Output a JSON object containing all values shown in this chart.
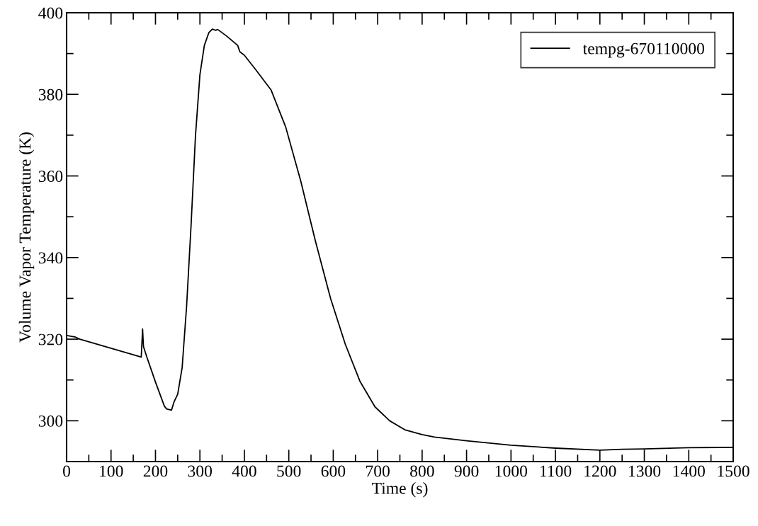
{
  "chart_data": {
    "type": "line",
    "xlabel": "Time (s)",
    "ylabel": "Volume Vapor Temperature (K)",
    "xlim": [
      0,
      1500
    ],
    "xticks": [
      0,
      100,
      200,
      300,
      400,
      500,
      600,
      700,
      800,
      900,
      1000,
      1100,
      1200,
      1300,
      1400,
      1500
    ],
    "ylim": [
      290,
      400
    ],
    "yticks": [
      300,
      320,
      340,
      360,
      380,
      400
    ],
    "grid": false,
    "legend": "top right",
    "line_style": "solid",
    "marker": "none",
    "x": [
      0,
      20,
      30,
      168,
      171,
      173,
      180,
      200,
      220,
      225,
      236,
      242,
      250,
      260,
      270,
      280,
      290,
      300,
      310,
      320,
      328,
      335,
      340,
      360,
      385,
      390,
      400,
      426,
      460,
      493,
      527,
      560,
      594,
      627,
      660,
      694,
      727,
      761,
      800,
      828,
      900,
      1000,
      1100,
      1200,
      1250,
      1300,
      1400,
      1500
    ],
    "series": [
      {
        "name": "tempg-670110000",
        "color": "#000000",
        "values": [
          320.9,
          320.5,
          320.0,
          315.6,
          322.5,
          318.2,
          315.8,
          309.5,
          303.6,
          302.9,
          302.6,
          304.7,
          306.5,
          313.0,
          328.0,
          347.7,
          369.8,
          384.8,
          392.0,
          395.1,
          396.0,
          395.7,
          395.9,
          394.3,
          392.0,
          390.4,
          389.6,
          386.0,
          381.1,
          372.0,
          358.7,
          344.0,
          330.0,
          318.8,
          309.7,
          303.4,
          300.0,
          297.8,
          296.6,
          296.0,
          295.1,
          294.0,
          293.3,
          292.8,
          293.0,
          293.1,
          293.4,
          293.5
        ]
      }
    ]
  }
}
